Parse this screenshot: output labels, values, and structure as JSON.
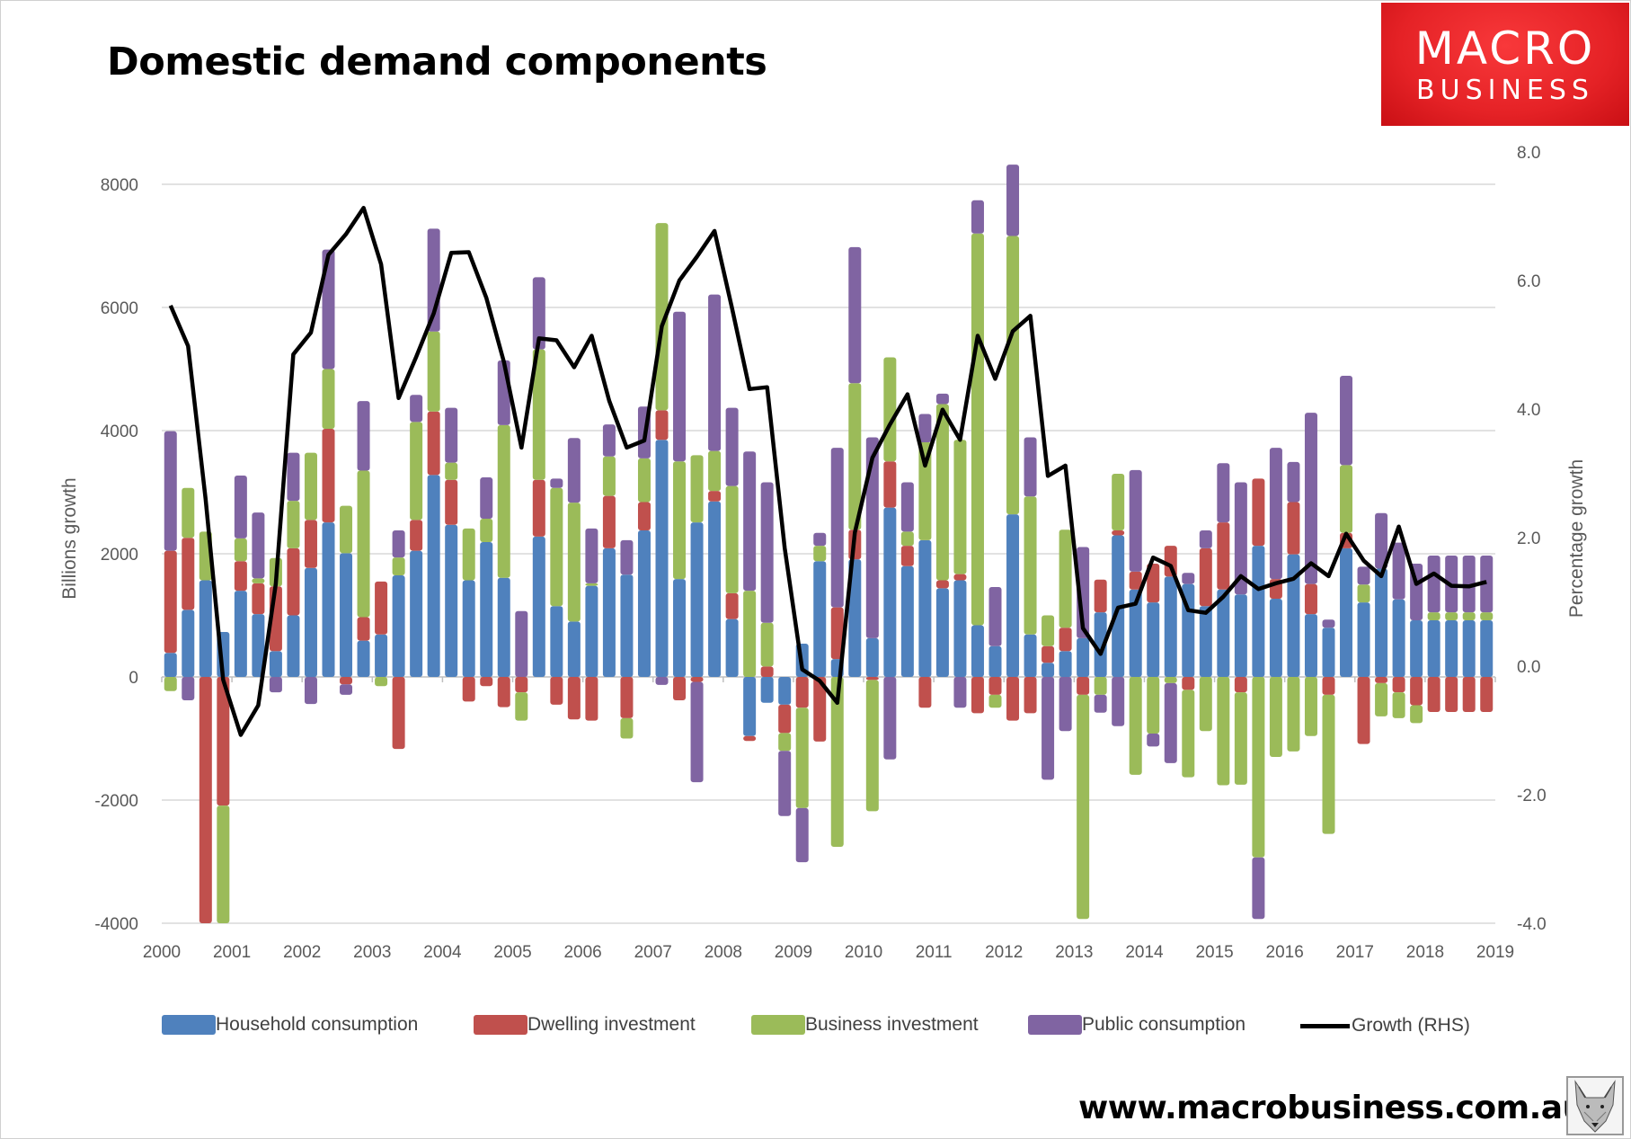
{
  "header": {
    "title": "Domestic demand components"
  },
  "logo": {
    "line1": "MACRO",
    "line2": "BUSINESS"
  },
  "footer": {
    "url": "www.macrobusiness.com.au"
  },
  "colors": {
    "household": "#4f81bd",
    "dwelling": "#c0504d",
    "business": "#9bbb59",
    "public": "#8064a2",
    "growth": "#000000",
    "grid": "#d9d9d9"
  },
  "chart_data": {
    "type": "bar",
    "stacked": true,
    "title": "Domestic demand components",
    "ylabel": "Billions growth",
    "y2label": "Percentage growth",
    "xlabel": "",
    "x_start": 2000,
    "periods_per_year": 4,
    "ylim": [
      -4000,
      8000
    ],
    "y2lim": [
      -4.0,
      8.0
    ],
    "y_ticks": [
      "8000",
      "6000",
      "4000",
      "2000",
      "0",
      "-2000",
      "-4000"
    ],
    "y2_ticks": [
      "8.0",
      "6.0",
      "4.0",
      "2.0",
      "0.0",
      "-2.0",
      "-4.0"
    ],
    "x_ticks": [
      "2000",
      "2001",
      "2002",
      "2003",
      "2004",
      "2005",
      "2006",
      "2007",
      "2008",
      "2009",
      "2010",
      "2011",
      "2012",
      "2013",
      "2014",
      "2015",
      "2016",
      "2017",
      "2018",
      "2019"
    ],
    "grid": true,
    "legend_position": "bottom",
    "series": [
      {
        "name": "Household consumption",
        "key": "household",
        "values": [
          390,
          1090,
          1570,
          730,
          1400,
          1020,
          420,
          1000,
          1770,
          2510,
          2010,
          590,
          690,
          1650,
          2050,
          3280,
          2470,
          1570,
          2190,
          1610,
          0,
          2280,
          1150,
          900,
          1480,
          2090,
          1660,
          2380,
          3850,
          1590,
          2510,
          2850,
          940,
          -960,
          -420,
          -450,
          540,
          1880,
          290,
          1910,
          630,
          2750,
          1800,
          2220,
          1440,
          1570,
          840,
          500,
          2640,
          690,
          230,
          420,
          630,
          1050,
          2300,
          1420,
          1210,
          1630,
          1510,
          1150,
          1420,
          1340,
          2130,
          1270,
          1990,
          1020,
          800,
          2090,
          1210,
          1760,
          1260,
          920,
          920,
          920,
          920,
          920
        ]
      },
      {
        "name": "Dwelling investment",
        "key": "dwelling",
        "values": [
          1660,
          1170,
          -4000,
          -2090,
          480,
          500,
          1050,
          1090,
          780,
          1520,
          -120,
          380,
          860,
          -1170,
          500,
          1030,
          730,
          -400,
          -150,
          -490,
          -250,
          920,
          -450,
          -690,
          -710,
          850,
          -670,
          460,
          480,
          -380,
          -80,
          170,
          420,
          -80,
          170,
          -460,
          -500,
          -1050,
          840,
          480,
          -50,
          750,
          330,
          -500,
          130,
          100,
          -590,
          -290,
          -710,
          -590,
          270,
          380,
          -290,
          530,
          80,
          290,
          630,
          500,
          -210,
          940,
          1090,
          -250,
          1090,
          320,
          850,
          490,
          -290,
          250,
          -1090,
          -100,
          -250,
          -460,
          -570,
          -570,
          -570,
          -570
        ]
      },
      {
        "name": "Business investment",
        "key": "business",
        "values": [
          -230,
          810,
          790,
          -1910,
          370,
          80,
          460,
          770,
          1090,
          970,
          770,
          2380,
          -150,
          290,
          1590,
          1300,
          280,
          840,
          380,
          2480,
          -460,
          2120,
          1920,
          1930,
          40,
          640,
          -330,
          710,
          3040,
          1910,
          1090,
          650,
          1740,
          1400,
          710,
          -290,
          -1630,
          250,
          -2760,
          2380,
          -2130,
          1690,
          230,
          1590,
          2860,
          2180,
          6360,
          -210,
          4520,
          2240,
          500,
          1590,
          -3640,
          -290,
          920,
          -1590,
          -920,
          -100,
          -1420,
          -880,
          -1760,
          -1500,
          -2930,
          -1300,
          -1210,
          -960,
          -2260,
          1100,
          290,
          -540,
          -420,
          -290,
          130,
          130,
          130,
          130
        ]
      },
      {
        "name": "Public consumption",
        "key": "public",
        "values": [
          1940,
          -380,
          0,
          0,
          1020,
          1070,
          -250,
          780,
          -440,
          1940,
          -170,
          1130,
          0,
          440,
          440,
          1670,
          890,
          0,
          670,
          1050,
          1070,
          1170,
          150,
          1050,
          890,
          520,
          560,
          840,
          -130,
          2430,
          -1630,
          2540,
          1270,
          2260,
          2280,
          -1060,
          -880,
          210,
          2590,
          2210,
          3260,
          -1340,
          800,
          460,
          170,
          -500,
          540,
          960,
          1160,
          960,
          -1670,
          -880,
          1480,
          -290,
          -800,
          1650,
          -210,
          -1300,
          180,
          290,
          960,
          1820,
          -1000,
          2130,
          650,
          2780,
          130,
          1450,
          290,
          900,
          920,
          920,
          920,
          920,
          920,
          920
        ]
      },
      {
        "name": "Growth (RHS)",
        "key": "growth",
        "type": "line",
        "axis": "right",
        "values": [
          5.61,
          4.98,
          2.6,
          -0.21,
          -1.07,
          -0.61,
          1.28,
          4.85,
          5.19,
          6.4,
          6.72,
          7.13,
          6.25,
          4.17,
          4.81,
          5.49,
          6.43,
          6.44,
          5.73,
          4.73,
          3.4,
          5.1,
          5.07,
          4.65,
          5.14,
          4.13,
          3.4,
          3.51,
          5.29,
          6.0,
          6.37,
          6.77,
          5.57,
          4.31,
          4.34,
          1.84,
          -0.05,
          -0.23,
          -0.57,
          2.08,
          3.24,
          3.76,
          4.23,
          3.12,
          3.99,
          3.52,
          5.14,
          4.47,
          5.21,
          5.45,
          2.96,
          3.12,
          0.59,
          0.19,
          0.91,
          0.97,
          1.69,
          1.56,
          0.87,
          0.83,
          1.08,
          1.4,
          1.2,
          1.29,
          1.36,
          1.6,
          1.4,
          2.06,
          1.64,
          1.4,
          2.17,
          1.28,
          1.44,
          1.25,
          1.24,
          1.31
        ]
      }
    ]
  }
}
